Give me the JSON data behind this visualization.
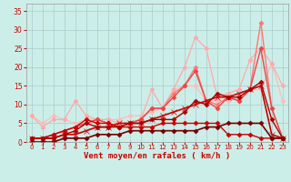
{
  "xlabel": "Vent moyen/en rafales ( km/h )",
  "bg_color": "#cceee8",
  "grid_color": "#aacccc",
  "text_color": "#cc0000",
  "xlim": [
    -0.5,
    23.5
  ],
  "ylim": [
    0,
    37
  ],
  "yticks": [
    0,
    5,
    10,
    15,
    20,
    25,
    30,
    35
  ],
  "xticks": [
    0,
    1,
    2,
    3,
    4,
    5,
    6,
    7,
    8,
    9,
    10,
    11,
    12,
    13,
    14,
    15,
    16,
    17,
    18,
    19,
    20,
    21,
    22,
    23
  ],
  "series": [
    {
      "x": [
        0,
        1,
        2,
        3,
        4,
        5,
        6,
        7,
        8,
        9,
        10,
        11,
        12,
        13,
        14,
        15,
        16,
        17,
        18,
        19,
        20,
        21,
        22,
        23
      ],
      "y": [
        7,
        5,
        7,
        6,
        5,
        6,
        6,
        6,
        6,
        7,
        7,
        8,
        9,
        14,
        15,
        15,
        11,
        11,
        11,
        12,
        14,
        14,
        21,
        11
      ],
      "color": "#ffbbbb",
      "lw": 0.9,
      "marker": "D",
      "ms": 2.5
    },
    {
      "x": [
        0,
        1,
        2,
        3,
        4,
        5,
        6,
        7,
        8,
        9,
        10,
        11,
        12,
        13,
        14,
        15,
        16,
        17,
        18,
        19,
        20,
        21,
        22,
        23
      ],
      "y": [
        7,
        4,
        6,
        6,
        11,
        7,
        6,
        6,
        5,
        5,
        6,
        14,
        9,
        14,
        20,
        28,
        25,
        12,
        13,
        14,
        22,
        25,
        21,
        15
      ],
      "color": "#ffaaaa",
      "lw": 0.9,
      "marker": "D",
      "ms": 2.5
    },
    {
      "x": [
        0,
        1,
        2,
        3,
        4,
        5,
        6,
        7,
        8,
        9,
        10,
        11,
        12,
        13,
        14,
        15,
        16,
        17,
        18,
        19,
        20,
        21,
        22,
        23
      ],
      "y": [
        1,
        1,
        2,
        3,
        4,
        5,
        6,
        5,
        4,
        5,
        6,
        9,
        9,
        13,
        15,
        20,
        11,
        10,
        12,
        11,
        14,
        32,
        9,
        1
      ],
      "color": "#ff7777",
      "lw": 1.0,
      "marker": "D",
      "ms": 2.5
    },
    {
      "x": [
        0,
        1,
        2,
        3,
        4,
        5,
        6,
        7,
        8,
        9,
        10,
        11,
        12,
        13,
        14,
        15,
        16,
        17,
        18,
        19,
        20,
        21,
        22,
        23
      ],
      "y": [
        1,
        1,
        2,
        3,
        4,
        5,
        6,
        5,
        4,
        5,
        6,
        9,
        9,
        12,
        15,
        19,
        11,
        9,
        12,
        11,
        14,
        25,
        9,
        1
      ],
      "color": "#ee4444",
      "lw": 1.0,
      "marker": "D",
      "ms": 2.5
    },
    {
      "x": [
        0,
        1,
        2,
        3,
        4,
        5,
        6,
        7,
        8,
        9,
        10,
        11,
        12,
        13,
        14,
        15,
        16,
        17,
        18,
        19,
        20,
        21,
        22,
        23
      ],
      "y": [
        1,
        1,
        1,
        2,
        2,
        3,
        4,
        4,
        5,
        5,
        5,
        6,
        7,
        8,
        9,
        10,
        11,
        12,
        12,
        13,
        14,
        15,
        2,
        1
      ],
      "color": "#cc0000",
      "lw": 1.2,
      "marker": "x",
      "ms": 4
    },
    {
      "x": [
        0,
        1,
        2,
        3,
        4,
        5,
        6,
        7,
        8,
        9,
        10,
        11,
        12,
        13,
        14,
        15,
        16,
        17,
        18,
        19,
        20,
        21,
        22,
        23
      ],
      "y": [
        1,
        1,
        2,
        3,
        4,
        6,
        5,
        5,
        4,
        4,
        4,
        4,
        5,
        5,
        5,
        5,
        5,
        5,
        2,
        2,
        2,
        1,
        1,
        1
      ],
      "color": "#cc0000",
      "lw": 1.0,
      "marker": "D",
      "ms": 2.5
    },
    {
      "x": [
        0,
        1,
        2,
        3,
        4,
        5,
        6,
        7,
        8,
        9,
        10,
        11,
        12,
        13,
        14,
        15,
        16,
        17,
        18,
        19,
        20,
        21,
        22,
        23
      ],
      "y": [
        1,
        1,
        1,
        2,
        3,
        5,
        4,
        4,
        4,
        5,
        5,
        6,
        6,
        6,
        8,
        11,
        10,
        13,
        12,
        12,
        14,
        16,
        6,
        1
      ],
      "color": "#aa0000",
      "lw": 1.0,
      "marker": "D",
      "ms": 2.5
    },
    {
      "x": [
        0,
        1,
        2,
        3,
        4,
        5,
        6,
        7,
        8,
        9,
        10,
        11,
        12,
        13,
        14,
        15,
        16,
        17,
        18,
        19,
        20,
        21,
        22,
        23
      ],
      "y": [
        0,
        0,
        0,
        1,
        1,
        1,
        2,
        2,
        2,
        3,
        3,
        3,
        3,
        3,
        3,
        3,
        4,
        4,
        5,
        5,
        5,
        5,
        1,
        1
      ],
      "color": "#770000",
      "lw": 1.2,
      "marker": "D",
      "ms": 2.5
    }
  ]
}
